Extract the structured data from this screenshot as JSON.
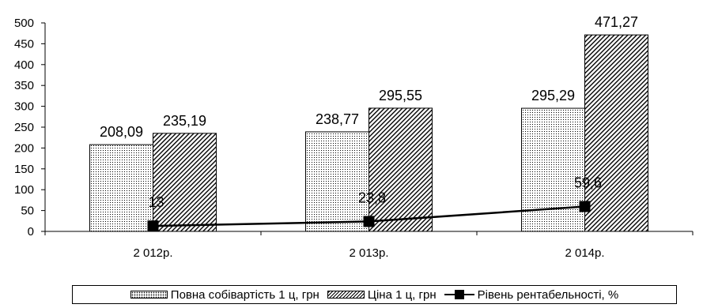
{
  "chart_data": {
    "type": "bar",
    "categories": [
      "2 012р.",
      "2 013р.",
      "2 014р."
    ],
    "series": [
      {
        "name": "Повна собівартість 1 ц, грн",
        "type": "bar",
        "pattern": "dots",
        "values": [
          208.09,
          238.77,
          295.29
        ],
        "labels": [
          "208,09",
          "238,77",
          "295,29"
        ]
      },
      {
        "name": "Ціна 1 ц, грн",
        "type": "bar",
        "pattern": "hatch",
        "values": [
          235.19,
          295.55,
          471.27
        ],
        "labels": [
          "235,19",
          "295,55",
          "471,27"
        ]
      },
      {
        "name": "Рівень рентабельності, %",
        "type": "line",
        "marker": "square",
        "values": [
          13,
          23.8,
          59.6
        ],
        "labels": [
          "13",
          "23,8",
          "59,6"
        ]
      }
    ],
    "ylim": [
      0,
      500
    ],
    "yticks": [
      "0",
      "50",
      "100",
      "150",
      "200",
      "250",
      "300",
      "350",
      "400",
      "450",
      "500"
    ],
    "title": "",
    "xlabel": "",
    "ylabel": "",
    "legend_position": "bottom",
    "grid": false
  },
  "legend": {
    "item1": "Повна собівартість 1 ц, грн",
    "item2": "Ціна 1 ц, грн",
    "item3": "Рівень рентабельності, %"
  }
}
